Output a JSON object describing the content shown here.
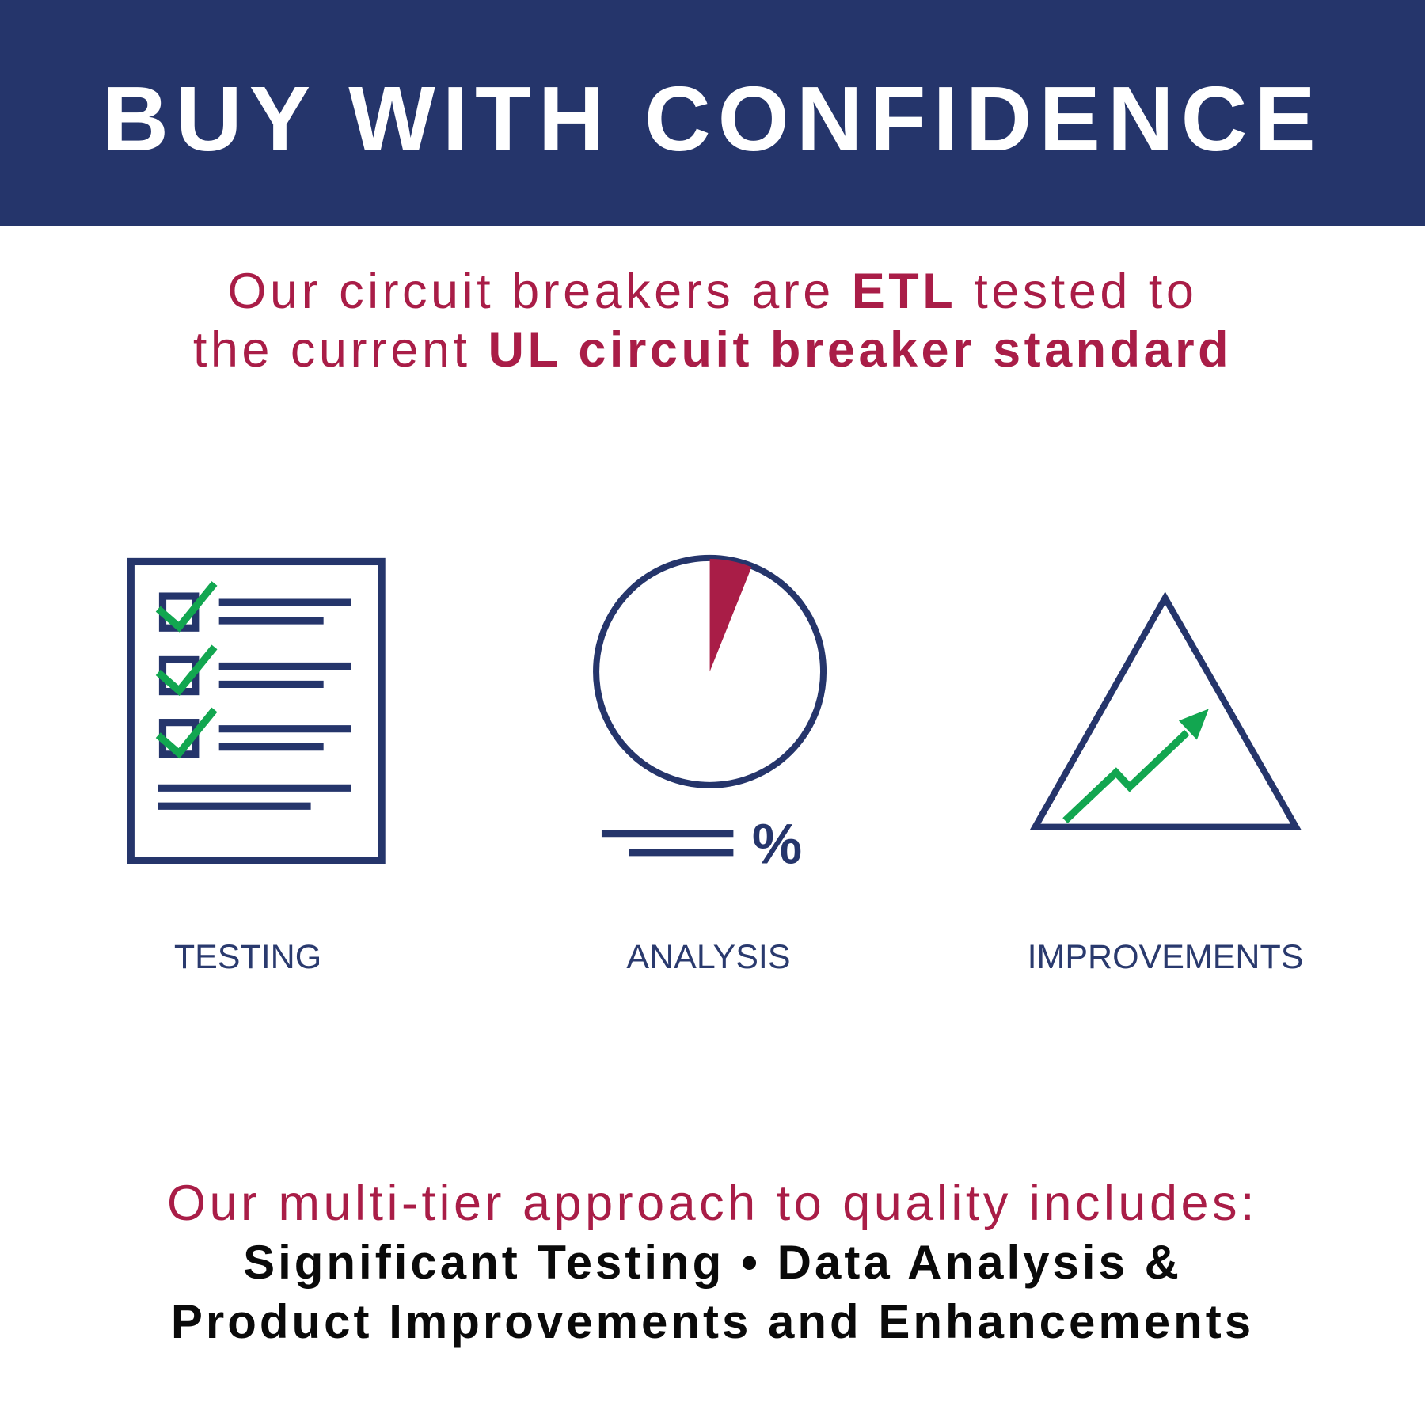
{
  "header": {
    "title": "BUY WITH CONFIDENCE"
  },
  "intro": {
    "line1_pre": "Our circuit breakers are ",
    "line1_bold": "ETL",
    "line1_post": " tested to",
    "line2_pre": "the current ",
    "line2_bold": "UL circuit breaker standard"
  },
  "features": [
    {
      "label": "TESTING",
      "icon": "checklist-icon"
    },
    {
      "label": "ANALYSIS",
      "icon": "pie-chart-icon",
      "symbol": "%"
    },
    {
      "label": "IMPROVEMENTS",
      "icon": "triangle-growth-arrow-icon"
    }
  ],
  "footer": {
    "line1": "Our multi-tier approach to quality includes:",
    "line2": "Significant Testing • Data Analysis &",
    "line3": "Product Improvements and Enhancements"
  },
  "colors": {
    "navy": "#25356b",
    "red": "#a91d47",
    "green": "#12a650"
  }
}
